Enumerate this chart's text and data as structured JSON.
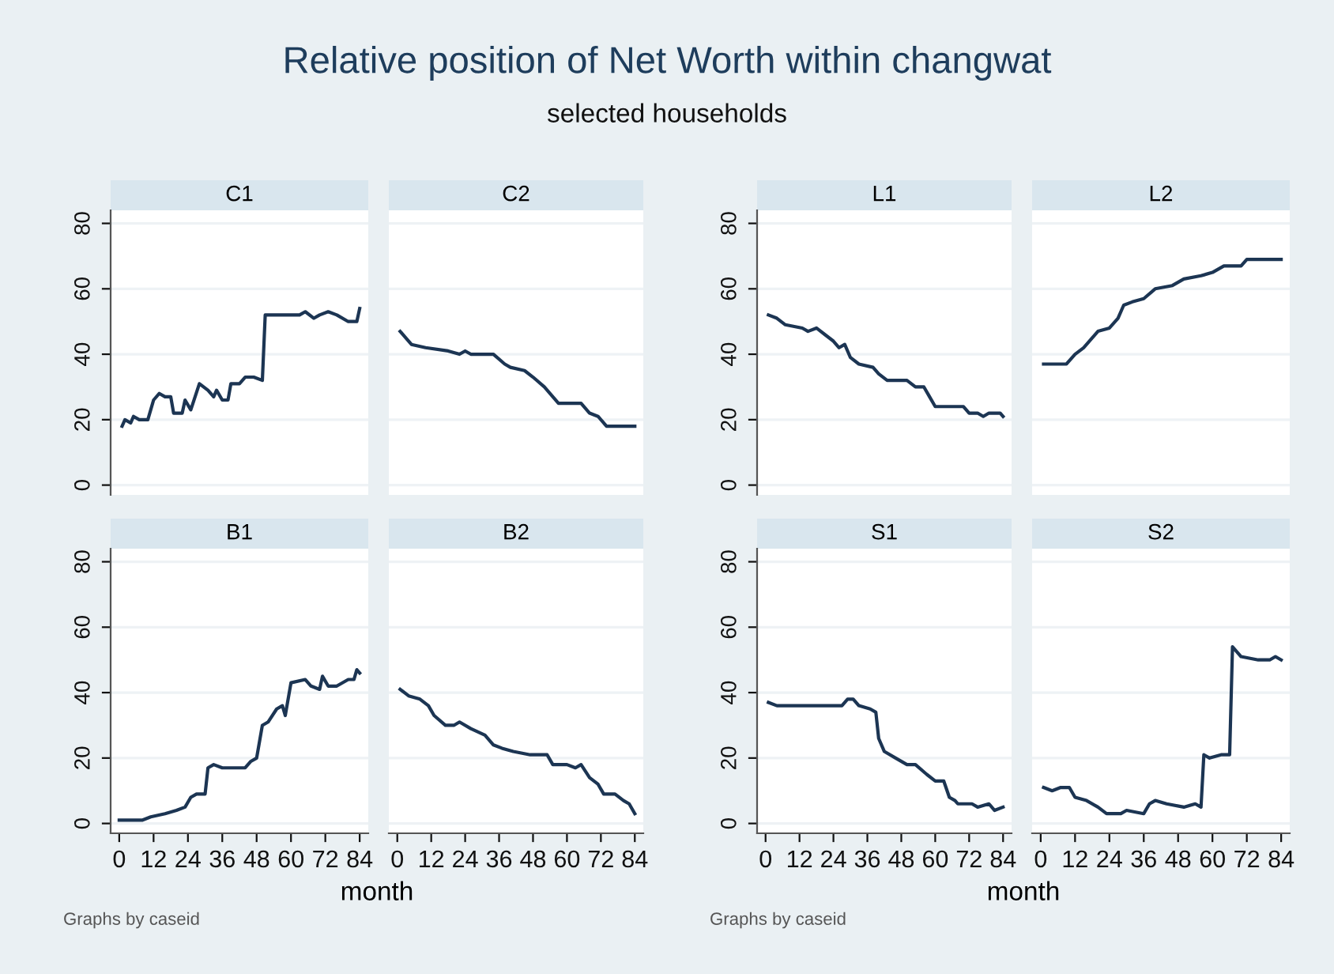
{
  "chart_data": [
    {
      "type": "line",
      "title": "C1",
      "color": "#1c3553",
      "xlim": [
        -3,
        87
      ],
      "ylim": [
        -3,
        84
      ],
      "xticks": [
        0,
        12,
        24,
        36,
        48,
        60,
        72,
        84
      ],
      "yticks": [
        0,
        20,
        40,
        60,
        80
      ],
      "grid": "y",
      "tick_labels": "y",
      "x": [
        1,
        2,
        4,
        5,
        7,
        10,
        12,
        14,
        16,
        18,
        19,
        22,
        23,
        25,
        28,
        31,
        33,
        34,
        36,
        38,
        39,
        42,
        44,
        47,
        50,
        51,
        55,
        60,
        63,
        65,
        68,
        70,
        73,
        76,
        80,
        83,
        84
      ],
      "values": [
        18,
        20,
        19,
        21,
        20,
        20,
        26,
        28,
        27,
        27,
        22,
        22,
        26,
        23,
        31,
        29,
        27,
        29,
        26,
        26,
        31,
        31,
        33,
        33,
        32,
        52,
        52,
        52,
        52,
        53,
        51,
        52,
        53,
        52,
        50,
        50,
        54
      ]
    },
    {
      "type": "line",
      "title": "C2",
      "color": "#1c3553",
      "xlim": [
        -3,
        87
      ],
      "ylim": [
        -3,
        84
      ],
      "xticks": [
        0,
        12,
        24,
        36,
        48,
        60,
        72,
        84
      ],
      "yticks": [
        0,
        20,
        40,
        60,
        80
      ],
      "grid": "y",
      "tick_labels": false,
      "x": [
        1,
        3,
        5,
        10,
        18,
        22,
        24,
        26,
        34,
        38,
        40,
        45,
        48,
        52,
        57,
        65,
        68,
        71,
        74,
        84
      ],
      "values": [
        47,
        45,
        43,
        42,
        41,
        40,
        41,
        40,
        40,
        37,
        36,
        35,
        33,
        30,
        25,
        25,
        22,
        21,
        18,
        18
      ]
    },
    {
      "type": "line",
      "title": "L1",
      "color": "#1c3553",
      "xlim": [
        -3,
        87
      ],
      "ylim": [
        -3,
        84
      ],
      "xticks": [
        0,
        12,
        24,
        36,
        48,
        60,
        72,
        84
      ],
      "yticks": [
        0,
        20,
        40,
        60,
        80
      ],
      "grid": "y",
      "tick_labels": "y",
      "x": [
        1,
        4,
        7,
        13,
        15,
        18,
        21,
        24,
        26,
        28,
        30,
        33,
        38,
        40,
        43,
        50,
        53,
        56,
        58,
        60,
        70,
        72,
        75,
        77,
        79,
        83,
        84
      ],
      "values": [
        52,
        51,
        49,
        48,
        47,
        48,
        46,
        44,
        42,
        43,
        39,
        37,
        36,
        34,
        32,
        32,
        30,
        30,
        27,
        24,
        24,
        22,
        22,
        21,
        22,
        22,
        21
      ]
    },
    {
      "type": "line",
      "title": "L2",
      "color": "#1c3553",
      "xlim": [
        -3,
        87
      ],
      "ylim": [
        -3,
        84
      ],
      "xticks": [
        0,
        12,
        24,
        36,
        48,
        60,
        72,
        84
      ],
      "yticks": [
        0,
        20,
        40,
        60,
        80
      ],
      "grid": "y",
      "tick_labels": false,
      "x": [
        1,
        9,
        12,
        15,
        18,
        20,
        24,
        27,
        29,
        32,
        36,
        40,
        46,
        50,
        56,
        60,
        64,
        66,
        70,
        72,
        84
      ],
      "values": [
        37,
        37,
        40,
        42,
        45,
        47,
        48,
        51,
        55,
        56,
        57,
        60,
        61,
        63,
        64,
        65,
        67,
        67,
        67,
        69,
        69
      ]
    },
    {
      "type": "line",
      "title": "B1",
      "color": "#1c3553",
      "xlim": [
        -3,
        87
      ],
      "ylim": [
        -3,
        84
      ],
      "xticks": [
        0,
        12,
        24,
        36,
        48,
        60,
        72,
        84
      ],
      "yticks": [
        0,
        20,
        40,
        60,
        80
      ],
      "grid": "y",
      "xlabel": "month",
      "annotations": [
        "Graphs by caseid"
      ],
      "x": [
        0,
        8,
        11,
        16,
        20,
        23,
        25,
        27,
        30,
        31,
        33,
        36,
        44,
        46,
        48,
        50,
        52,
        55,
        57,
        58,
        60,
        65,
        67,
        70,
        71,
        73,
        76,
        80,
        82,
        83,
        84
      ],
      "values": [
        1,
        1,
        2,
        3,
        4,
        5,
        8,
        9,
        9,
        17,
        18,
        17,
        17,
        19,
        20,
        30,
        31,
        35,
        36,
        33,
        43,
        44,
        42,
        41,
        45,
        42,
        42,
        44,
        44,
        47,
        46
      ]
    },
    {
      "type": "line",
      "title": "B2",
      "color": "#1c3553",
      "xlim": [
        -3,
        87
      ],
      "ylim": [
        -3,
        84
      ],
      "xticks": [
        0,
        12,
        24,
        36,
        48,
        60,
        72,
        84
      ],
      "yticks": [
        0,
        20,
        40,
        60,
        80
      ],
      "grid": "y",
      "tick_labels": "x",
      "x": [
        1,
        4,
        8,
        11,
        13,
        17,
        20,
        22,
        26,
        31,
        34,
        37,
        41,
        47,
        53,
        55,
        60,
        63,
        65,
        68,
        71,
        73,
        77,
        80,
        82,
        84
      ],
      "values": [
        41,
        39,
        38,
        36,
        33,
        30,
        30,
        31,
        29,
        27,
        24,
        23,
        22,
        21,
        21,
        18,
        18,
        17,
        18,
        14,
        12,
        9,
        9,
        7,
        6,
        3
      ]
    },
    {
      "type": "line",
      "title": "S1",
      "color": "#1c3553",
      "xlim": [
        -3,
        87
      ],
      "ylim": [
        -3,
        84
      ],
      "xticks": [
        0,
        12,
        24,
        36,
        48,
        60,
        72,
        84
      ],
      "yticks": [
        0,
        20,
        40,
        60,
        80
      ],
      "grid": "y",
      "xlabel": "month",
      "annotations": [
        "Graphs by caseid"
      ],
      "x": [
        1,
        4,
        27,
        29,
        31,
        33,
        37,
        39,
        40,
        42,
        46,
        50,
        53,
        57,
        60,
        63,
        65,
        67,
        68,
        73,
        75,
        79,
        81,
        84
      ],
      "values": [
        37,
        36,
        36,
        38,
        38,
        36,
        35,
        34,
        26,
        22,
        20,
        18,
        18,
        15,
        13,
        13,
        8,
        7,
        6,
        6,
        5,
        6,
        4,
        5
      ]
    },
    {
      "type": "line",
      "title": "S2",
      "color": "#1c3553",
      "xlim": [
        -3,
        87
      ],
      "ylim": [
        -3,
        84
      ],
      "xticks": [
        0,
        12,
        24,
        36,
        48,
        60,
        72,
        84
      ],
      "yticks": [
        0,
        20,
        40,
        60,
        80
      ],
      "grid": "y",
      "tick_labels": "x",
      "x": [
        1,
        4,
        7,
        10,
        12,
        16,
        20,
        23,
        28,
        30,
        36,
        38,
        40,
        44,
        50,
        54,
        56,
        57,
        59,
        63,
        66,
        67,
        70,
        76,
        80,
        82,
        84
      ],
      "values": [
        11,
        10,
        11,
        11,
        8,
        7,
        5,
        3,
        3,
        4,
        3,
        6,
        7,
        6,
        5,
        6,
        5,
        21,
        20,
        21,
        21,
        54,
        51,
        50,
        50,
        51,
        50
      ]
    },
    {
      "type": "other",
      "title": "Relative position of Net Worth within changwat",
      "subtitle": "selected households"
    }
  ]
}
